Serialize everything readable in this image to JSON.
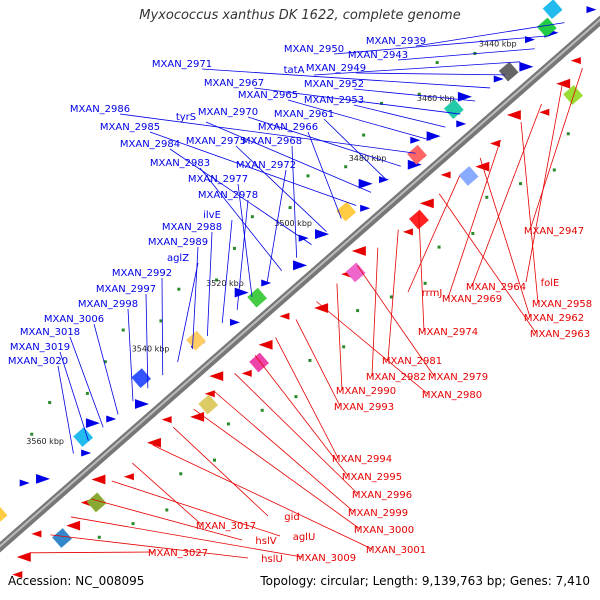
{
  "title": "Myxococcus xanthus DK 1622, complete genome",
  "footer": {
    "accession": "Accession: NC_008095",
    "summary": "Topology: circular; Length: 9,139,763 bp; Genes: 7,410"
  },
  "colors": {
    "forward": "#0000e6",
    "reverse": "#e60000",
    "backbone": "#888888",
    "tick": "#2a8a2a"
  },
  "kbp_markers": [
    "3440 kbp",
    "3460 kbp",
    "3480 kbp",
    "3500 kbp",
    "3520 kbp",
    "3540 kbp",
    "3560 kbp"
  ],
  "forward_labels": [
    "MXAN_2939",
    "MXAN_2950",
    "MXAN_2943",
    "tatA",
    "MXAN_2949",
    "MXAN_2971",
    "MXAN_2952",
    "MXAN_2967",
    "MXAN_2953",
    "MXAN_2965",
    "MXAN_2986",
    "MXAN_2970",
    "MXAN_2961",
    "tyrS",
    "MXAN_2985",
    "MXAN_2966",
    "MXAN_2975",
    "MXAN_2984",
    "MXAN_2968",
    "MXAN_2983",
    "MXAN_2972",
    "MXAN_2977",
    "MXAN_2978",
    "ilvE",
    "MXAN_2988",
    "MXAN_2989",
    "aglZ",
    "MXAN_2992",
    "MXAN_2997",
    "MXAN_2998",
    "MXAN_3006",
    "MXAN_3018",
    "MXAN_3019",
    "MXAN_3020"
  ],
  "reverse_labels": [
    "MXAN_2947",
    "folE",
    "MXAN_2964",
    "MXAN_2958",
    "MXAN_2969",
    "MXAN_2962",
    "rrmJ",
    "MXAN_2963",
    "MXAN_2974",
    "MXAN_2981",
    "MXAN_2982",
    "MXAN_2979",
    "MXAN_2990",
    "MXAN_2980",
    "MXAN_2993",
    "MXAN_2994",
    "MXAN_2995",
    "MXAN_2996",
    "MXAN_2999",
    "MXAN_3000",
    "gid",
    "MXAN_3001",
    "MXAN_3017",
    "aglU",
    "hslV",
    "MXAN_3009",
    "hslU",
    "MXAN_3027"
  ]
}
